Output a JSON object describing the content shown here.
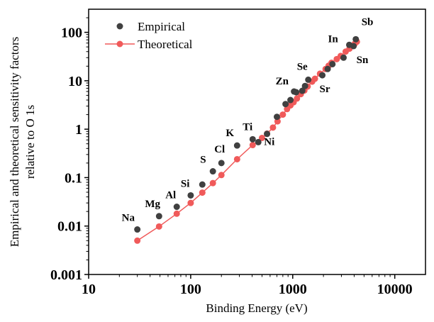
{
  "chart_data": {
    "type": "scatter",
    "title": "",
    "xlabel": "Binding Energy (eV)",
    "ylabel_lines": [
      "Empirical and theoretical sensitivity factors",
      "relative to O 1s"
    ],
    "xscale": "log",
    "yscale": "log",
    "xlim": [
      10,
      20000
    ],
    "ylim": [
      0.001,
      300
    ],
    "x_ticks": [
      10,
      100,
      1000,
      10000
    ],
    "x_tick_labels": [
      "10",
      "100",
      "1000",
      "10000"
    ],
    "y_ticks": [
      0.001,
      0.01,
      0.1,
      1,
      10,
      100
    ],
    "y_tick_labels": [
      "0.001",
      "0.01",
      "0.1",
      "1",
      "10",
      "100"
    ],
    "grid": false,
    "legend_position": "top-left",
    "series": [
      {
        "name": "Empirical",
        "kind": "scatter",
        "color": "#404040",
        "points": [
          [
            30,
            0.0085
          ],
          [
            49,
            0.016
          ],
          [
            73,
            0.025
          ],
          [
            100,
            0.043
          ],
          [
            130,
            0.072
          ],
          [
            165,
            0.135
          ],
          [
            200,
            0.2
          ],
          [
            285,
            0.46
          ],
          [
            405,
            0.62
          ],
          [
            460,
            0.54
          ],
          [
            560,
            0.8
          ],
          [
            700,
            1.8
          ],
          [
            850,
            3.3
          ],
          [
            950,
            4.0
          ],
          [
            1030,
            6.0
          ],
          [
            1080,
            5.8
          ],
          [
            1240,
            6.2
          ],
          [
            1320,
            7.8
          ],
          [
            1420,
            10.5
          ],
          [
            1950,
            13.0
          ],
          [
            2200,
            17.5
          ],
          [
            2450,
            22.0
          ],
          [
            3150,
            30.0
          ],
          [
            3580,
            55.0
          ],
          [
            3950,
            52.0
          ],
          [
            4150,
            72.0
          ]
        ]
      },
      {
        "name": "Theoretical",
        "kind": "line",
        "color": "#f05a5a",
        "points": [
          [
            30,
            0.005
          ],
          [
            49,
            0.0098
          ],
          [
            73,
            0.018
          ],
          [
            100,
            0.03
          ],
          [
            130,
            0.049
          ],
          [
            165,
            0.077
          ],
          [
            200,
            0.113
          ],
          [
            285,
            0.24
          ],
          [
            405,
            0.47
          ],
          [
            500,
            0.66
          ],
          [
            560,
            0.81
          ],
          [
            640,
            1.08
          ],
          [
            710,
            1.45
          ],
          [
            800,
            2.0
          ],
          [
            880,
            2.6
          ],
          [
            950,
            3.1
          ],
          [
            1020,
            3.6
          ],
          [
            1100,
            4.3
          ],
          [
            1200,
            5.3
          ],
          [
            1300,
            6.3
          ],
          [
            1400,
            7.6
          ],
          [
            1550,
            9.6
          ],
          [
            1650,
            11.0
          ],
          [
            1850,
            14.0
          ],
          [
            2100,
            17.5
          ],
          [
            2250,
            20.5
          ],
          [
            2400,
            23.5
          ],
          [
            2700,
            28.0
          ],
          [
            2950,
            32.5
          ],
          [
            3300,
            40.0
          ],
          [
            3600,
            46.0
          ],
          [
            3850,
            53.0
          ],
          [
            4050,
            58.0
          ],
          [
            4250,
            64.0
          ]
        ]
      }
    ],
    "annotations": [
      {
        "text": "Na",
        "x": 30,
        "y": 0.0085,
        "dx": -22,
        "dy": -12
      },
      {
        "text": "Mg",
        "x": 49,
        "y": 0.016,
        "dx": -20,
        "dy": -13
      },
      {
        "text": "Al",
        "x": 73,
        "y": 0.025,
        "dx": -16,
        "dy": -12
      },
      {
        "text": "Si",
        "x": 100,
        "y": 0.043,
        "dx": -14,
        "dy": -12
      },
      {
        "text": "S",
        "x": 165,
        "y": 0.135,
        "dx": -18,
        "dy": -12
      },
      {
        "text": "Cl",
        "x": 200,
        "y": 0.2,
        "dx": -10,
        "dy": -15
      },
      {
        "text": "K",
        "x": 285,
        "y": 0.46,
        "dx": -16,
        "dy": -13
      },
      {
        "text": "Ti",
        "x": 405,
        "y": 0.62,
        "dx": -14,
        "dy": -13
      },
      {
        "text": "Ni",
        "x": 460,
        "y": 0.54,
        "dx": 8,
        "dy": 4
      },
      {
        "text": "Zn",
        "x": 1030,
        "y": 6.0,
        "dx": -26,
        "dy": -10
      },
      {
        "text": "Se",
        "x": 1420,
        "y": 10.5,
        "dx": -16,
        "dy": -14
      },
      {
        "text": "Sr",
        "x": 1950,
        "y": 13.0,
        "dx": -4,
        "dy": 24
      },
      {
        "text": "In",
        "x": 3580,
        "y": 55.0,
        "dx": -30,
        "dy": -4
      },
      {
        "text": "Sb",
        "x": 4150,
        "y": 72.0,
        "dx": 8,
        "dy": -20
      },
      {
        "text": "Sn",
        "x": 3950,
        "y": 52.0,
        "dx": 4,
        "dy": 24
      }
    ]
  }
}
